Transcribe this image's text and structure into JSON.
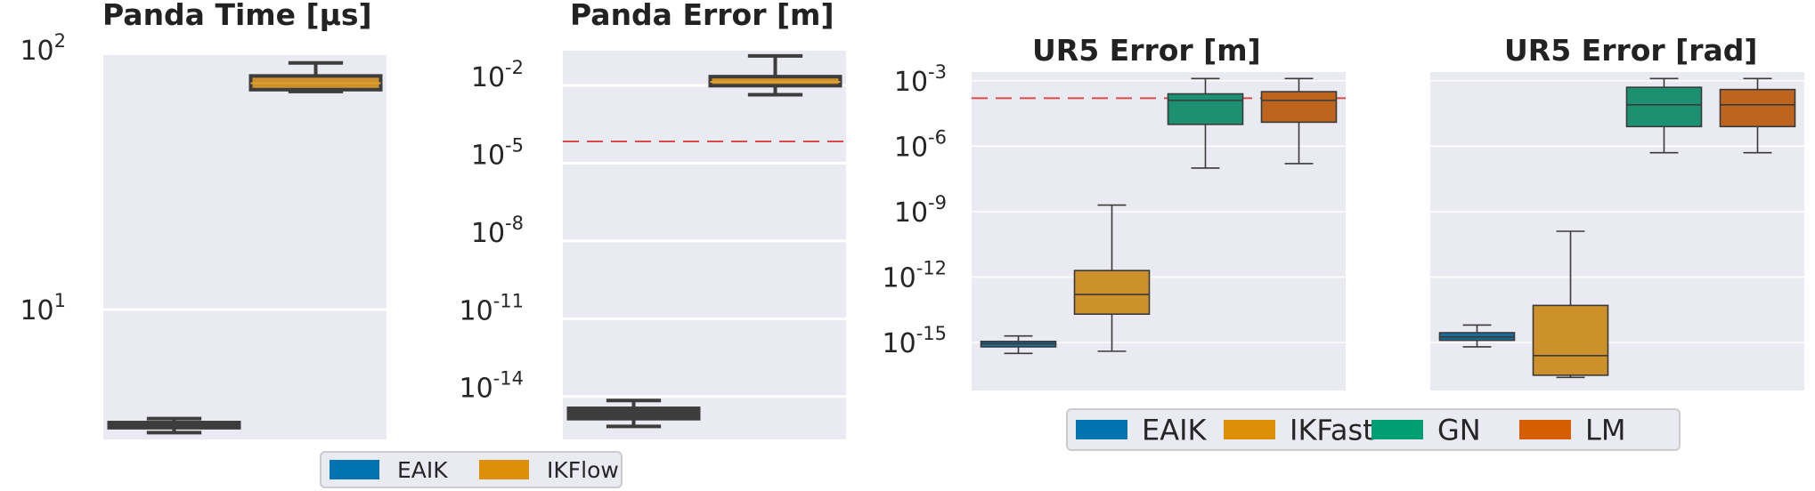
{
  "colors": {
    "panel_bg": "#eaeaf2",
    "grid": "#ffffff",
    "threshold": "#d94a4a",
    "EAIK": "#0173b2",
    "IKFlow": "#de8f05",
    "IKFast": "#de8f05",
    "GN": "#029e73",
    "LM": "#d55e00"
  },
  "legends": [
    {
      "entries": [
        "EAIK",
        "IKFlow"
      ]
    },
    {
      "entries": [
        "EAIK",
        "IKFast",
        "GN",
        "LM"
      ]
    }
  ],
  "chart_data": [
    {
      "type": "box",
      "title_bold": "Panda",
      "title_rest": "Time [µs]",
      "yscale": "log",
      "ylim_log10": [
        0.5,
        1.98
      ],
      "yticks": [
        {
          "base": "10",
          "exp": "1",
          "log": 1
        },
        {
          "base": "10",
          "exp": "2",
          "log": 2
        }
      ],
      "categories": [
        "EAIK",
        "IKFlow"
      ],
      "series": [
        {
          "name": "EAIK",
          "log10": {
            "wmin": 0.526,
            "q1": 0.545,
            "median": 0.55,
            "q3": 0.565,
            "wmax": 0.58
          }
        },
        {
          "name": "IKFlow",
          "log10": {
            "wmin": 1.84,
            "q1": 1.847,
            "median": 1.872,
            "q3": 1.9,
            "wmax": 1.95
          }
        }
      ]
    },
    {
      "type": "box",
      "title_bold": "Panda",
      "title_rest": "Error [m]",
      "yscale": "log",
      "ylim_log10": [
        -16.0,
        -1.0
      ],
      "threshold_log10": -4.5,
      "yticks": [
        {
          "base": "10",
          "exp": "-14",
          "log": -14
        },
        {
          "base": "10",
          "exp": "-11",
          "log": -11
        },
        {
          "base": "10",
          "exp": "-8",
          "log": -8
        },
        {
          "base": "10",
          "exp": "-5",
          "log": -5
        },
        {
          "base": "10",
          "exp": "-2",
          "log": -2
        }
      ],
      "categories": [
        "EAIK",
        "IKFlow"
      ],
      "series": [
        {
          "name": "EAIK",
          "log10": {
            "wmin": -15.5,
            "q1": -15.2,
            "median": -15.05,
            "q3": -14.8,
            "wmax": -14.5
          }
        },
        {
          "name": "IKFlow",
          "log10": {
            "wmin": -2.7,
            "q1": -2.35,
            "median": -2.2,
            "q3": -2.0,
            "wmax": -1.2
          }
        }
      ]
    },
    {
      "type": "box",
      "title_bold": "",
      "title_rest": "UR5 Error [m]",
      "yscale": "log",
      "ylim_log10": [
        -17.2,
        -2.6
      ],
      "threshold_log10": -3.8,
      "yticks": [
        {
          "base": "10",
          "exp": "-15",
          "log": -15
        },
        {
          "base": "10",
          "exp": "-12",
          "log": -12
        },
        {
          "base": "10",
          "exp": "-9",
          "log": -9
        },
        {
          "base": "10",
          "exp": "-6",
          "log": -6
        },
        {
          "base": "10",
          "exp": "-3",
          "log": -3
        }
      ],
      "categories": [
        "EAIK",
        "IKFast",
        "GN",
        "LM"
      ],
      "series": [
        {
          "name": "EAIK",
          "log10": {
            "wmin": -15.5,
            "q1": -15.2,
            "median": -15.05,
            "q3": -14.95,
            "wmax": -14.7
          }
        },
        {
          "name": "IKFast",
          "log10": {
            "wmin": -15.4,
            "q1": -13.7,
            "median": -12.8,
            "q3": -11.7,
            "wmax": -8.7
          }
        },
        {
          "name": "GN",
          "log10": {
            "wmin": -7.0,
            "q1": -5.0,
            "median": -3.9,
            "q3": -3.6,
            "wmax": -2.9
          }
        },
        {
          "name": "LM",
          "log10": {
            "wmin": -6.8,
            "q1": -4.9,
            "median": -3.9,
            "q3": -3.5,
            "wmax": -2.9
          }
        }
      ]
    },
    {
      "type": "box",
      "title_bold": "",
      "title_rest": "UR5 Error [rad]",
      "yscale": "log",
      "ylim_log10": [
        -17.2,
        -2.6
      ],
      "yticks": [],
      "categories": [
        "EAIK",
        "IKFast",
        "GN",
        "LM"
      ],
      "series": [
        {
          "name": "EAIK",
          "log10": {
            "wmin": -15.2,
            "q1": -14.9,
            "median": -14.75,
            "q3": -14.55,
            "wmax": -14.2
          }
        },
        {
          "name": "IKFast",
          "log10": {
            "wmin": -16.6,
            "q1": -16.5,
            "median": -15.6,
            "q3": -13.3,
            "wmax": -9.9
          }
        },
        {
          "name": "GN",
          "log10": {
            "wmin": -6.3,
            "q1": -5.1,
            "median": -4.1,
            "q3": -3.3,
            "wmax": -2.9
          }
        },
        {
          "name": "LM",
          "log10": {
            "wmin": -6.3,
            "q1": -5.1,
            "median": -4.1,
            "q3": -3.4,
            "wmax": -2.9
          }
        }
      ]
    }
  ]
}
